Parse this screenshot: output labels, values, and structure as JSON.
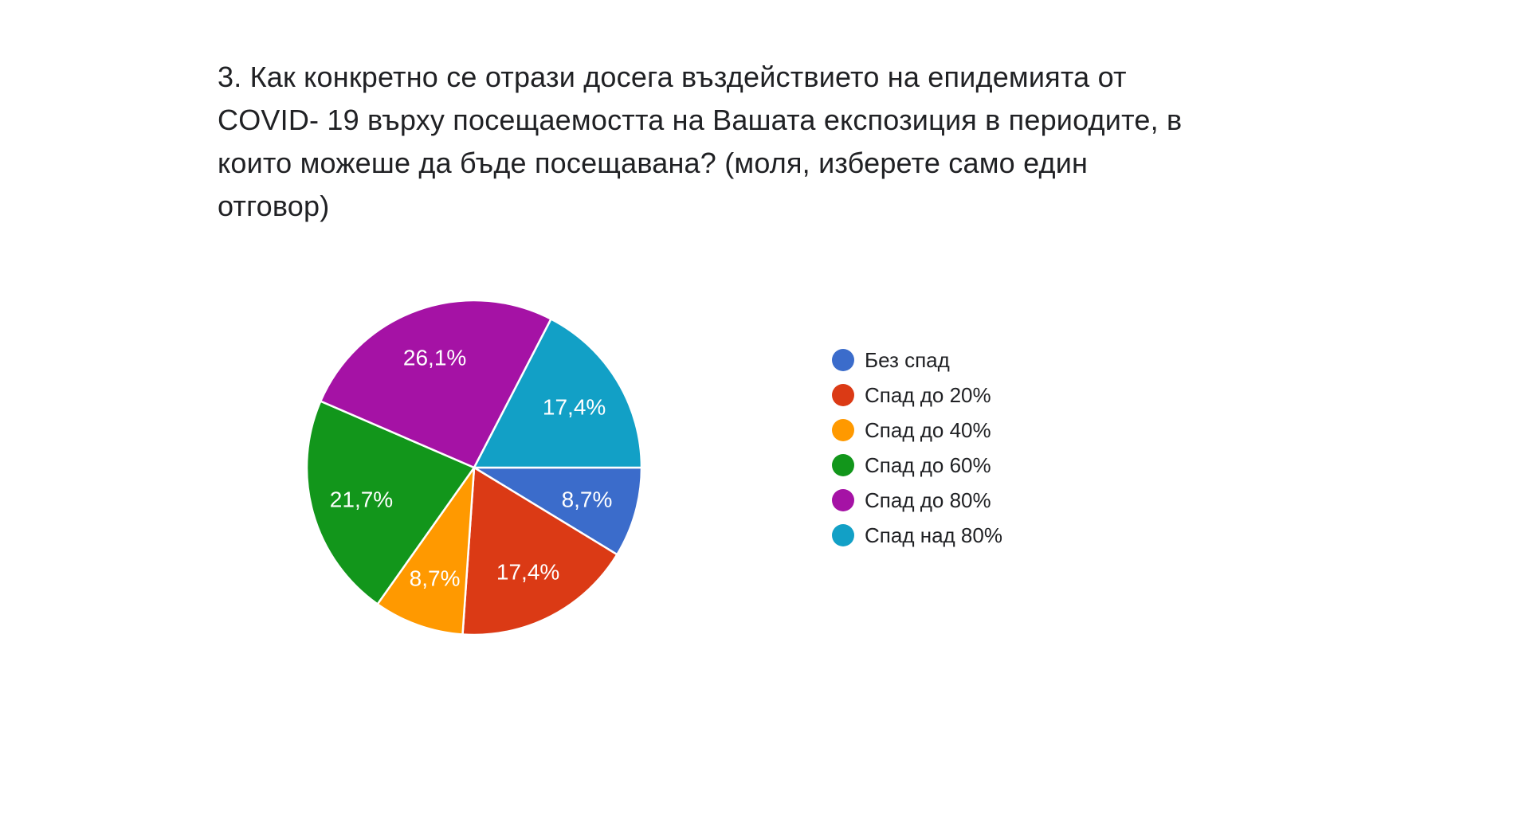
{
  "page": {
    "background": "#ffffff",
    "text_color": "#202124"
  },
  "question": {
    "title": "3. Как конкретно се отрази досега въздействието на епидемията от COVID- 19 върху посещаемостта на Вашата експозиция в периодите, в които можеше да бъде посещавана? (моля, изберете само един отговор)",
    "title_lines": [
      "3. Как конкретно се отрази досега въздействието на епидемията от",
      "COVID- 19 върху посещаемостта на Вашата експозиция в периодите, в",
      "които можеше да бъде посещавана? (моля, изберете само един",
      "отговор)"
    ]
  },
  "chart_data": {
    "type": "pie",
    "title": "",
    "categories": [
      "Без спад",
      "Спад до 20%",
      "Спад до 40%",
      "Спад до 60%",
      "Спад до 80%",
      "Спад над 80%"
    ],
    "values": [
      8.7,
      17.4,
      8.7,
      21.7,
      26.1,
      17.4
    ],
    "value_labels": [
      "8,7%",
      "17,4%",
      "8,7%",
      "21,7%",
      "26,1%",
      "17,4%"
    ],
    "colors": [
      "#3B6CCB",
      "#DB3A15",
      "#FF9900",
      "#12961B",
      "#A512A5",
      "#12A0C6"
    ],
    "start_angle_deg": 0,
    "direction": "clockwise",
    "legend_position": "right",
    "slice_border_color": "#ffffff",
    "slice_label_color": "#ffffff",
    "slice_label_font_size": 28,
    "slice_label_radius_ratio": 0.7
  }
}
